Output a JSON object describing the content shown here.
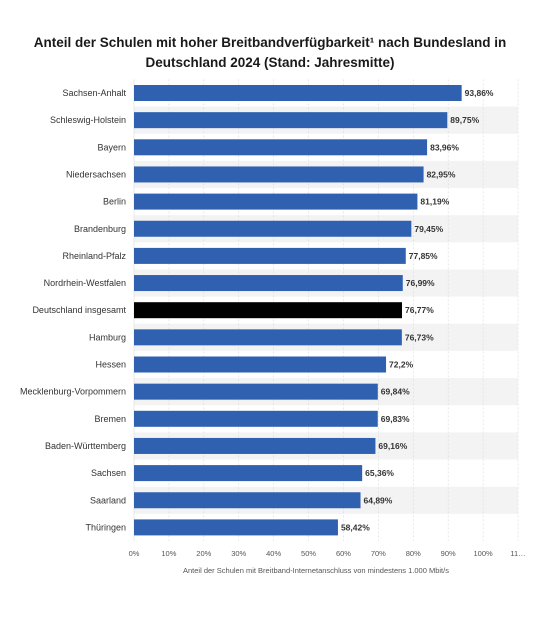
{
  "title": "Anteil der Schulen mit hoher Breitbandverfügbarkeit¹ nach Bundesland in Deutschland 2024 (Stand: Jahresmitte)",
  "chart_data": {
    "type": "bar",
    "orientation": "horizontal",
    "title": "Anteil der Schulen mit hoher Breitbandverfügbarkeit¹ nach Bundesland in Deutschland 2024 (Stand: Jahresmitte)",
    "xlabel": "Anteil der Schulen mit Breitband-Internetanschluss von mindestens 1.000 Mbit/s",
    "ylabel": "",
    "xlim": [
      0,
      110
    ],
    "grid": true,
    "ticks": [
      "0%",
      "10%",
      "20%",
      "30%",
      "40%",
      "50%",
      "60%",
      "70%",
      "80%",
      "90%",
      "100%",
      "11…"
    ],
    "tick_values": [
      0,
      10,
      20,
      30,
      40,
      50,
      60,
      70,
      80,
      90,
      100,
      110
    ],
    "categories": [
      "Sachsen-Anhalt",
      "Schleswig-Holstein",
      "Bayern",
      "Niedersachsen",
      "Berlin",
      "Brandenburg",
      "Rheinland-Pfalz",
      "Nordrhein-Westfalen",
      "Deutschland insgesamt",
      "Hamburg",
      "Hessen",
      "Mecklenburg-Vorpommern",
      "Bremen",
      "Baden-Württemberg",
      "Sachsen",
      "Saarland",
      "Thüringen"
    ],
    "values": [
      93.86,
      89.75,
      83.96,
      82.95,
      81.19,
      79.45,
      77.85,
      76.99,
      76.77,
      76.73,
      72.2,
      69.84,
      69.83,
      69.16,
      65.36,
      64.89,
      58.42
    ],
    "value_labels": [
      "93,86%",
      "89,75%",
      "83,96%",
      "82,95%",
      "81,19%",
      "79,45%",
      "77,85%",
      "76,99%",
      "76,77%",
      "76,73%",
      "72,2%",
      "69,84%",
      "69,83%",
      "69,16%",
      "65,36%",
      "64,89%",
      "58,42%"
    ],
    "highlight_category": "Deutschland insgesamt",
    "colors": {
      "bar": "#2f61b0",
      "highlight": "#000000",
      "stripe": "#f3f3f3",
      "grid": "#d9d9d9"
    }
  }
}
